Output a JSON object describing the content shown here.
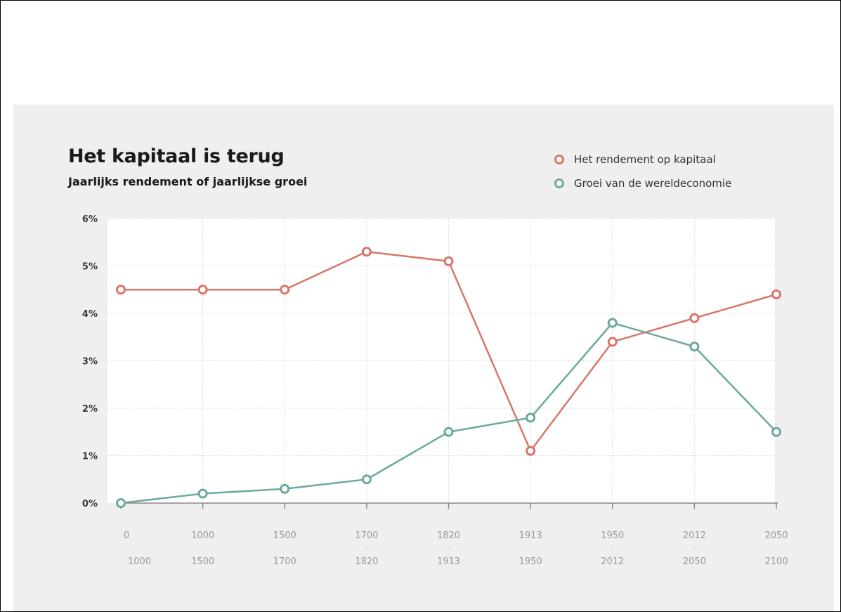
{
  "chart_data": {
    "type": "line",
    "title": "Het kapitaal is terug",
    "subtitle": "Jaarlijks rendement of jaarlijkse groei",
    "categories": [
      {
        "from": "0",
        "to": "1000"
      },
      {
        "from": "1000",
        "to": "1500"
      },
      {
        "from": "1500",
        "to": "1700"
      },
      {
        "from": "1700",
        "to": "1820"
      },
      {
        "from": "1820",
        "to": "1913"
      },
      {
        "from": "1913",
        "to": "1950"
      },
      {
        "from": "1950",
        "to": "2012"
      },
      {
        "from": "2012",
        "to": "2050"
      },
      {
        "from": "2050",
        "to": "2100"
      }
    ],
    "series": [
      {
        "name": "Het rendement op kapitaal",
        "color": "#d9756a",
        "values": [
          4.5,
          4.5,
          4.5,
          5.3,
          5.1,
          1.1,
          3.4,
          3.9,
          4.4
        ]
      },
      {
        "name": "Groei van de wereldeconomie",
        "color": "#6aaa9e",
        "values": [
          0.0,
          0.2,
          0.3,
          0.5,
          1.5,
          1.8,
          3.8,
          3.3,
          1.5
        ]
      }
    ],
    "y_ticks": [
      "0%",
      "1%",
      "2%",
      "3%",
      "4%",
      "5%",
      "6%"
    ],
    "ylim": [
      0,
      6
    ],
    "grid": true,
    "legend_position": "top-right"
  }
}
